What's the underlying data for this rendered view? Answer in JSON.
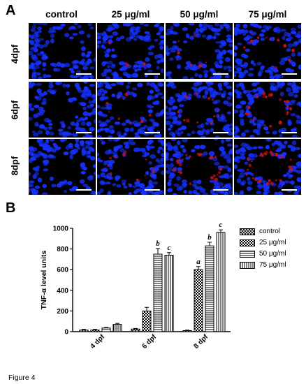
{
  "panel_a": {
    "letter": "A",
    "columns": [
      "control",
      "25 μg/ml",
      "50 μg/ml",
      "75 μg/ml"
    ],
    "rows": [
      "4dpf",
      "6dpf",
      "8dpf"
    ],
    "colors": {
      "nuclei": "#1530ff",
      "signal": "#d01010",
      "background": "#000000",
      "scale_bar": "#ffffff"
    }
  },
  "panel_b": {
    "letter": "B"
  },
  "chart_data": {
    "type": "bar",
    "categories": [
      "4 dpf",
      "6 dpf",
      "8 dpf"
    ],
    "ylabel": "TNF-α level units",
    "xlabel": "",
    "ylim": [
      0,
      1000
    ],
    "yticks": [
      0,
      200,
      400,
      600,
      800,
      1000
    ],
    "legend_position": "right",
    "series": [
      {
        "name": "control",
        "pattern": "cross-hatch",
        "values": [
          15,
          25,
          10
        ],
        "errors": [
          8,
          6,
          5
        ],
        "letters": [
          "",
          "",
          ""
        ]
      },
      {
        "name": "25 μg/ml",
        "pattern": "checker",
        "values": [
          15,
          200,
          600
        ],
        "errors": [
          8,
          35,
          30
        ],
        "letters": [
          "",
          "",
          "a"
        ]
      },
      {
        "name": "50 μg/ml",
        "pattern": "horizontal",
        "values": [
          35,
          750,
          830
        ],
        "errors": [
          6,
          55,
          35
        ],
        "letters": [
          "",
          "b",
          "b"
        ]
      },
      {
        "name": "75 μg/ml",
        "pattern": "vertical",
        "values": [
          70,
          740,
          960
        ],
        "errors": [
          10,
          25,
          25
        ],
        "letters": [
          "",
          "c",
          "c"
        ]
      }
    ]
  },
  "caption": "Figure 4"
}
